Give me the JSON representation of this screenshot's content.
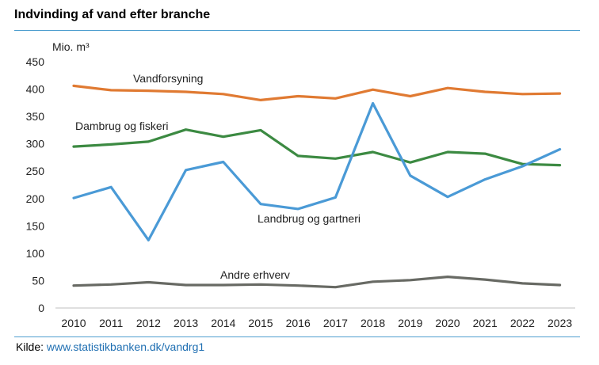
{
  "title": "Indvinding af vand efter branche",
  "source": {
    "label": "Kilde:",
    "link_text": "www.statistikbanken.dk/vandrg1"
  },
  "chart_data": {
    "type": "line",
    "title": "Indvinding af vand efter branche",
    "ylabel": "Mio. m³",
    "xlabel": "",
    "ylim": [
      0,
      450
    ],
    "yticks": [
      0,
      50,
      100,
      150,
      200,
      250,
      300,
      350,
      400,
      450
    ],
    "x": [
      "2010",
      "2011",
      "2012",
      "2013",
      "2014",
      "2015",
      "2016",
      "2017",
      "2018",
      "2019",
      "2020",
      "2021",
      "2022",
      "2023"
    ],
    "grid": false,
    "legend": "inline labels",
    "series": [
      {
        "name": "Vandforsyning",
        "color": "#e07a32",
        "values": [
          406,
          398,
          397,
          395,
          391,
          380,
          387,
          383,
          399,
          387,
          402,
          395,
          391,
          392
        ]
      },
      {
        "name": "Dambrug og fiskeri",
        "color": "#3c8a42",
        "values": [
          295,
          299,
          304,
          326,
          313,
          325,
          278,
          273,
          285,
          266,
          285,
          282,
          263,
          261
        ]
      },
      {
        "name": "Landbrug og gartneri",
        "color": "#4a9ad6",
        "values": [
          201,
          221,
          124,
          252,
          267,
          190,
          181,
          202,
          374,
          242,
          203,
          235,
          259,
          290
        ]
      },
      {
        "name": "Andre erhverv",
        "color": "#686a64",
        "values": [
          41,
          43,
          47,
          42,
          42,
          43,
          41,
          38,
          48,
          51,
          57,
          52,
          45,
          42
        ]
      }
    ]
  }
}
